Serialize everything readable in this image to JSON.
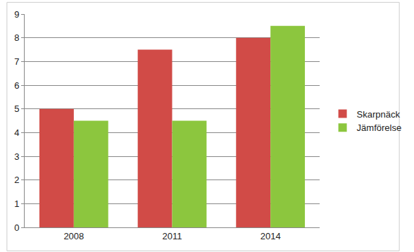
{
  "chart_data": {
    "type": "bar",
    "categories": [
      "2008",
      "2011",
      "2014"
    ],
    "series": [
      {
        "name": "Skarpnäck",
        "color": "#d14b47",
        "values": [
          5,
          7.5,
          8
        ]
      },
      {
        "name": "Jämförelse",
        "color": "#8cc63e",
        "values": [
          4.5,
          4.5,
          8.5
        ]
      }
    ],
    "ylim": [
      0,
      9
    ],
    "yticks": [
      0,
      1,
      2,
      3,
      4,
      5,
      6,
      7,
      8,
      9
    ],
    "grid": true,
    "legend": "right"
  }
}
